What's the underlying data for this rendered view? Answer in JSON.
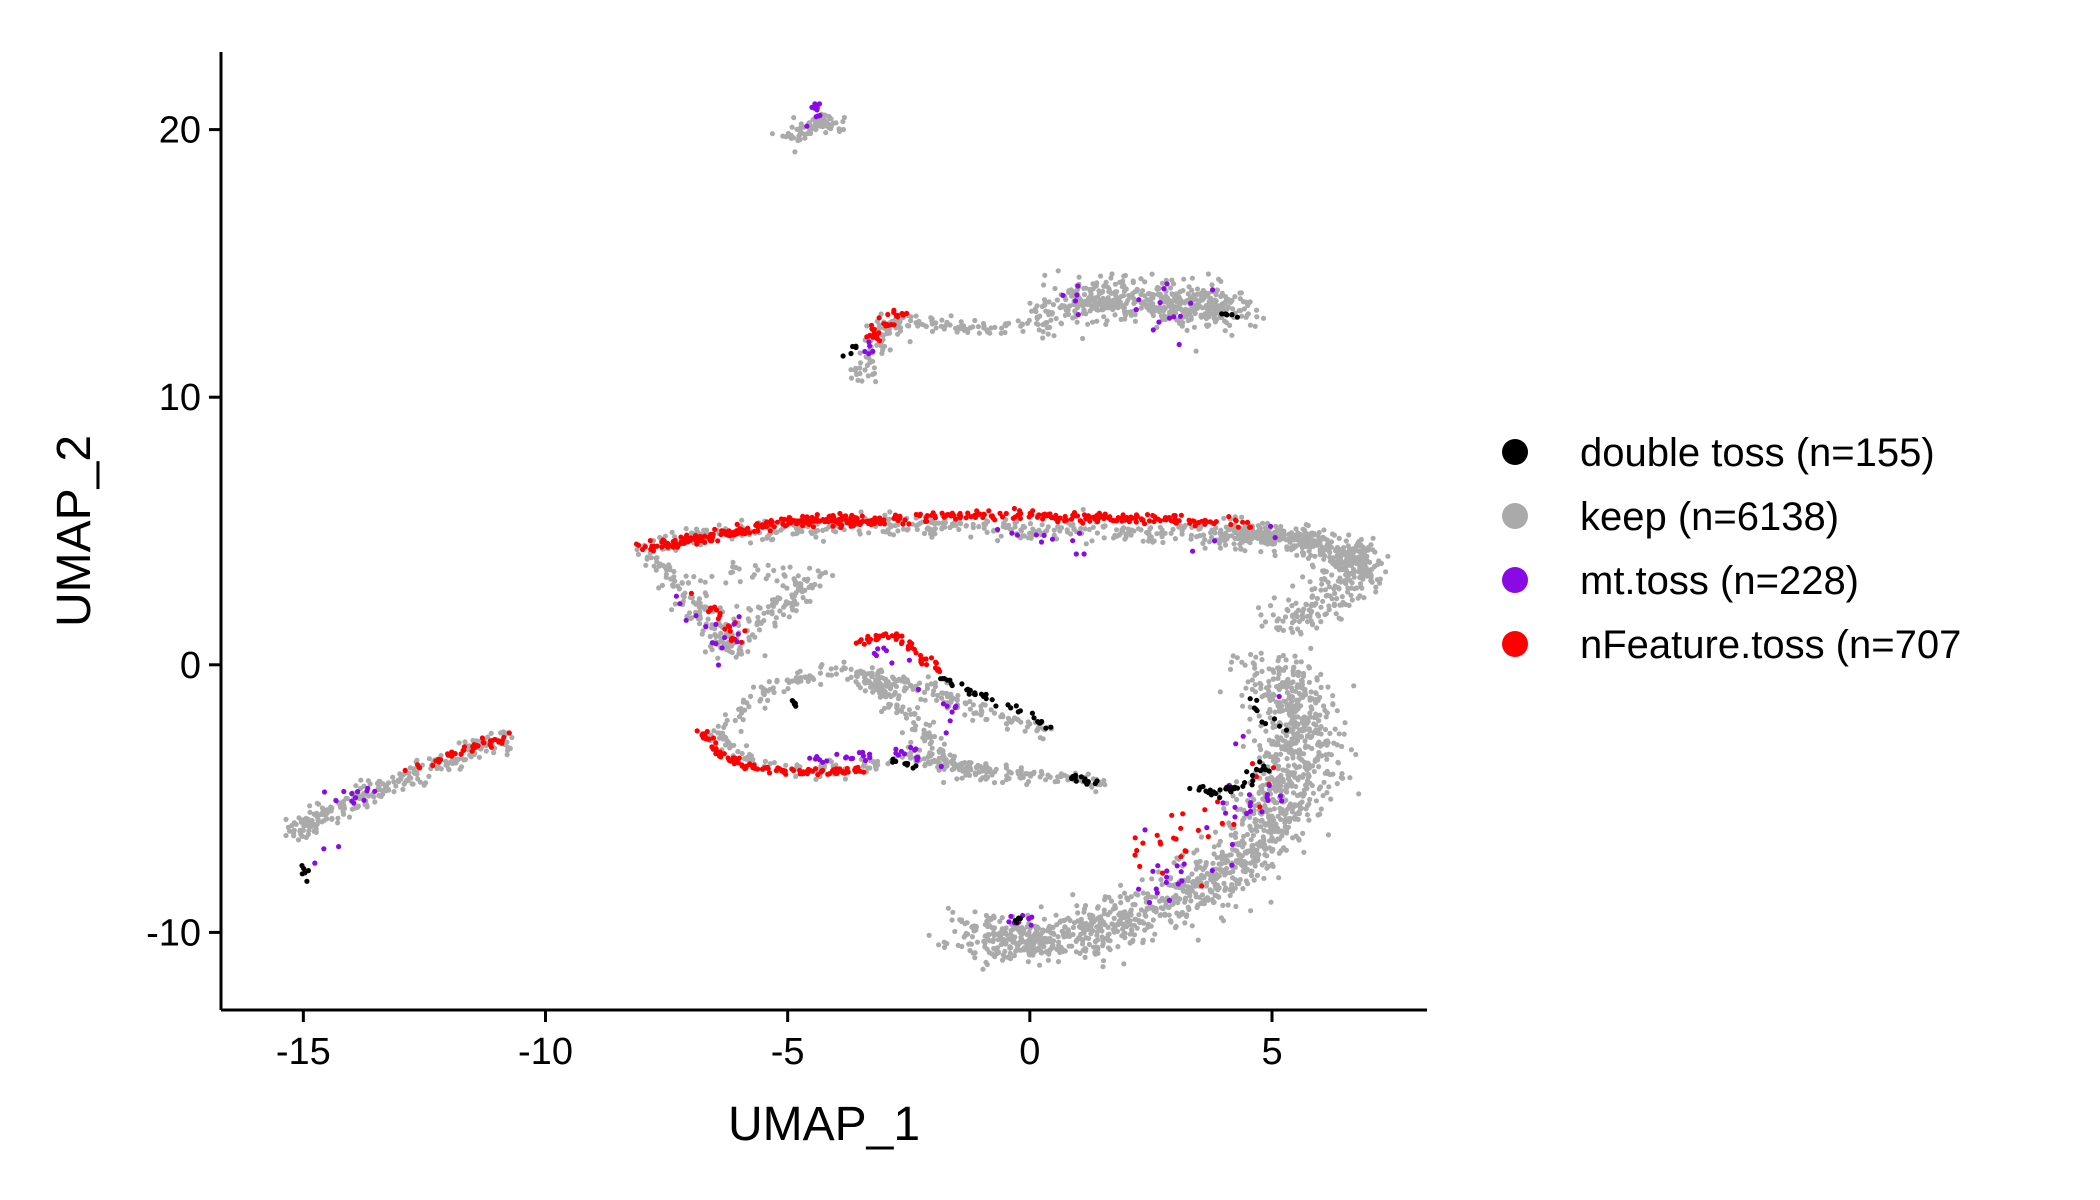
{
  "chart_data": {
    "type": "scatter",
    "title": "",
    "xlabel": "UMAP_1",
    "ylabel": "UMAP_2",
    "xlim": [
      -16.7,
      8.2
    ],
    "ylim": [
      -12.9,
      22.9
    ],
    "xticks": [
      -15,
      -10,
      -5,
      0,
      5
    ],
    "xtick_labels": [
      "-15",
      "-10",
      "-5",
      "0",
      "5"
    ],
    "yticks": [
      -10,
      0,
      10,
      20
    ],
    "ytick_labels": [
      "-10",
      "0",
      "10",
      "20"
    ],
    "grid": false,
    "legend_position": "right",
    "series": [
      {
        "name": "double toss (n=155)",
        "color": "#000000"
      },
      {
        "name": "keep (n=6138)",
        "color": "#aaaaaa"
      },
      {
        "name": "mt.toss (n=228)",
        "color": "#8a0ae6"
      },
      {
        "name": "nFeature.toss (n=707",
        "color": "#ff0000"
      }
    ],
    "clusters": [
      {
        "series": 1,
        "path": [
          [
            -4.9,
            19.7
          ],
          [
            -4.6,
            20.0
          ],
          [
            -4.2,
            20.4
          ],
          [
            -4.0,
            20.1
          ]
        ],
        "spread": 0.35,
        "n": 90
      },
      {
        "series": 1,
        "path": [
          [
            -3.6,
            10.7
          ],
          [
            -3.3,
            11.6
          ],
          [
            -3.0,
            12.6
          ],
          [
            -2.6,
            12.8
          ],
          [
            -2.0,
            12.7
          ],
          [
            -1.0,
            12.6
          ],
          [
            0.5,
            12.6
          ]
        ],
        "spread": 0.35,
        "n": 160
      },
      {
        "series": 1,
        "path": [
          [
            0.5,
            13.4
          ],
          [
            1.5,
            13.7
          ],
          [
            2.5,
            13.6
          ],
          [
            3.5,
            13.4
          ],
          [
            4.2,
            13.1
          ]
        ],
        "spread": 0.9,
        "n": 520
      },
      {
        "series": 1,
        "path": [
          [
            -8.0,
            4.4
          ],
          [
            -5.0,
            5.2
          ],
          [
            -2.0,
            5.2
          ],
          [
            1.0,
            5.0
          ],
          [
            4.0,
            4.9
          ],
          [
            5.5,
            4.8
          ],
          [
            6.6,
            4.2
          ],
          [
            7.0,
            3.4
          ]
        ],
        "spread": 0.45,
        "n": 650
      },
      {
        "series": 1,
        "path": [
          [
            4.0,
            5.0
          ],
          [
            5.5,
            4.6
          ],
          [
            6.8,
            3.8
          ],
          [
            6.2,
            2.5
          ],
          [
            5.2,
            1.5
          ]
        ],
        "spread": 0.7,
        "n": 320
      },
      {
        "series": 1,
        "path": [
          [
            -8.0,
            4.1
          ],
          [
            -7.5,
            3.5
          ],
          [
            -7.0,
            2.5
          ],
          [
            -6.5,
            1.5
          ],
          [
            -6.2,
            0.5
          ],
          [
            -5.8,
            1.6
          ],
          [
            -5.0,
            2.3
          ],
          [
            -4.5,
            3.2
          ],
          [
            -6.2,
            3.5
          ]
        ],
        "spread": 0.5,
        "n": 260
      },
      {
        "series": 1,
        "path": [
          [
            -6.5,
            -2.6
          ],
          [
            -5.5,
            -1.0
          ],
          [
            -4.0,
            -0.2
          ],
          [
            -3.0,
            -0.5
          ],
          [
            -2.0,
            -1.0
          ],
          [
            -1.0,
            -1.8
          ],
          [
            0.5,
            -2.5
          ]
        ],
        "spread": 0.35,
        "n": 220
      },
      {
        "series": 1,
        "path": [
          [
            -6.5,
            -2.6
          ],
          [
            -5.5,
            -3.8
          ],
          [
            -4.0,
            -4.0
          ],
          [
            -2.5,
            -3.5
          ],
          [
            -1.5,
            -3.8
          ],
          [
            -0.5,
            -4.0
          ],
          [
            0.5,
            -4.2
          ],
          [
            1.5,
            -4.4
          ]
        ],
        "spread": 0.3,
        "n": 220
      },
      {
        "series": 1,
        "path": [
          [
            -3.5,
            -0.5
          ],
          [
            -3.0,
            -1.0
          ],
          [
            -2.5,
            -2.0
          ],
          [
            -2.0,
            -3.0
          ],
          [
            -1.5,
            -4.0
          ],
          [
            -0.5,
            -4.3
          ]
        ],
        "spread": 0.35,
        "n": 140
      },
      {
        "series": 1,
        "path": [
          [
            5.0,
            0.0
          ],
          [
            5.5,
            -1.5
          ],
          [
            5.6,
            -3.0
          ],
          [
            5.4,
            -4.5
          ],
          [
            5.0,
            -6.0
          ],
          [
            4.2,
            -7.5
          ],
          [
            3.2,
            -8.6
          ],
          [
            2.0,
            -9.5
          ],
          [
            1.0,
            -10.2
          ],
          [
            -0.5,
            -10.3
          ],
          [
            -0.9,
            -10.0
          ]
        ],
        "spread": 1.0,
        "n": 1500
      },
      {
        "series": 1,
        "path": [
          [
            -15.2,
            -6.3
          ],
          [
            -14.5,
            -5.5
          ],
          [
            -13.8,
            -4.9
          ],
          [
            -13.2,
            -4.5
          ],
          [
            -12.3,
            -3.8
          ],
          [
            -11.5,
            -3.2
          ],
          [
            -10.8,
            -2.8
          ]
        ],
        "spread": 0.4,
        "n": 260
      },
      {
        "series": 3,
        "path": [
          [
            -8.0,
            4.4
          ],
          [
            -6.5,
            4.8
          ],
          [
            -5.0,
            5.4
          ],
          [
            -4.0,
            5.4
          ],
          [
            -3.0,
            5.3
          ]
        ],
        "spread": 0.22,
        "n": 230
      },
      {
        "series": 3,
        "path": [
          [
            -3.0,
            5.4
          ],
          [
            -1.5,
            5.6
          ],
          [
            0.0,
            5.6
          ],
          [
            1.0,
            5.5
          ],
          [
            2.0,
            5.5
          ],
          [
            3.0,
            5.4
          ],
          [
            4.5,
            5.3
          ]
        ],
        "spread": 0.2,
        "n": 190
      },
      {
        "series": 3,
        "path": [
          [
            -6.8,
            -2.5
          ],
          [
            -6.4,
            -3.3
          ],
          [
            -5.8,
            -3.8
          ],
          [
            -5.0,
            -4.0
          ],
          [
            -4.0,
            -4.0
          ],
          [
            -3.5,
            -3.9
          ]
        ],
        "spread": 0.15,
        "n": 110
      },
      {
        "series": 3,
        "path": [
          [
            -3.5,
            0.8
          ],
          [
            -3.0,
            1.2
          ],
          [
            -2.6,
            0.9
          ],
          [
            -2.3,
            0.3
          ],
          [
            -1.8,
            -0.2
          ]
        ],
        "spread": 0.2,
        "n": 50
      },
      {
        "series": 3,
        "path": [
          [
            -12.8,
            -4.0
          ],
          [
            -12.0,
            -3.4
          ],
          [
            -11.3,
            -3.0
          ],
          [
            -10.7,
            -2.7
          ]
        ],
        "spread": 0.15,
        "n": 40
      },
      {
        "series": 3,
        "path": [
          [
            -3.3,
            12.2
          ],
          [
            -3.0,
            12.8
          ],
          [
            -2.6,
            13.2
          ]
        ],
        "spread": 0.2,
        "n": 30
      },
      {
        "series": 3,
        "path": [
          [
            -6.8,
            2.6
          ],
          [
            -6.5,
            2.0
          ],
          [
            -6.2,
            1.5
          ],
          [
            -6.0,
            0.8
          ]
        ],
        "spread": 0.3,
        "n": 20
      },
      {
        "series": 3,
        "path": [
          [
            3.0,
            -6.0
          ],
          [
            2.5,
            -7.0
          ],
          [
            4.5,
            -4.5
          ],
          [
            3.5,
            -8.0
          ]
        ],
        "spread": 1.2,
        "n": 30
      },
      {
        "series": 0,
        "path": [
          [
            -1.8,
            -0.5
          ],
          [
            -1.2,
            -1.0
          ],
          [
            -0.5,
            -1.5
          ],
          [
            0.5,
            -2.4
          ]
        ],
        "spread": 0.15,
        "n": 35
      },
      {
        "series": 0,
        "path": [
          [
            3.4,
            -4.6
          ],
          [
            3.9,
            -4.8
          ],
          [
            4.4,
            -4.5
          ],
          [
            4.8,
            -3.8
          ]
        ],
        "spread": 0.2,
        "n": 40
      },
      {
        "series": 0,
        "path": [
          [
            0.9,
            -4.2
          ],
          [
            1.2,
            -4.4
          ],
          [
            1.5,
            -4.5
          ]
        ],
        "spread": 0.1,
        "n": 15
      },
      {
        "series": 0,
        "path": [
          [
            -3.0,
            -3.5
          ],
          [
            -2.6,
            -3.7
          ],
          [
            -2.3,
            -3.8
          ]
        ],
        "spread": 0.1,
        "n": 10
      },
      {
        "series": 0,
        "path": [
          [
            4.0,
            13.1
          ],
          [
            4.3,
            13.0
          ]
        ],
        "spread": 0.05,
        "n": 6
      },
      {
        "series": 0,
        "path": [
          [
            -15.0,
            -7.5
          ],
          [
            -14.9,
            -8.2
          ]
        ],
        "spread": 0.08,
        "n": 6
      },
      {
        "series": 0,
        "path": [
          [
            -0.2,
            -9.4
          ],
          [
            -0.4,
            -9.7
          ]
        ],
        "spread": 0.08,
        "n": 6
      },
      {
        "series": 0,
        "path": [
          [
            -5.0,
            -1.3
          ],
          [
            -4.8,
            -1.5
          ]
        ],
        "spread": 0.08,
        "n": 5
      },
      {
        "series": 0,
        "path": [
          [
            4.6,
            -1.2
          ],
          [
            4.8,
            -2.0
          ],
          [
            5.3,
            -2.5
          ]
        ],
        "spread": 0.2,
        "n": 10
      },
      {
        "series": 0,
        "path": [
          [
            -3.8,
            11.5
          ],
          [
            -3.5,
            12.0
          ]
        ],
        "spread": 0.1,
        "n": 5
      },
      {
        "series": 2,
        "path": [
          [
            -4.6,
            20.1
          ],
          [
            -4.3,
            20.6
          ],
          [
            -4.5,
            21.0
          ]
        ],
        "spread": 0.15,
        "n": 12
      },
      {
        "series": 2,
        "path": [
          [
            -4.5,
            -3.5
          ],
          [
            -3.5,
            -3.4
          ],
          [
            -2.5,
            -3.2
          ],
          [
            -2.0,
            -3.6
          ]
        ],
        "spread": 0.25,
        "n": 30
      },
      {
        "series": 2,
        "path": [
          [
            0.5,
            13.5
          ],
          [
            2.0,
            14.0
          ],
          [
            3.0,
            12.5
          ],
          [
            2.5,
            14.5
          ],
          [
            3.5,
            13.8
          ]
        ],
        "spread": 0.6,
        "n": 18
      },
      {
        "series": 2,
        "path": [
          [
            -7.5,
            3.0
          ],
          [
            -6.5,
            1.5
          ],
          [
            -6.5,
            0.5
          ],
          [
            -5.8,
            2.0
          ]
        ],
        "spread": 0.5,
        "n": 15
      },
      {
        "series": 2,
        "path": [
          [
            -0.5,
            5.0
          ],
          [
            1.0,
            4.5
          ],
          [
            3.5,
            4.5
          ],
          [
            5.0,
            5.0
          ]
        ],
        "spread": 0.5,
        "n": 15
      },
      {
        "series": 2,
        "path": [
          [
            3.5,
            -7.0
          ],
          [
            2.5,
            -8.5
          ],
          [
            5.0,
            -4.0
          ],
          [
            4.5,
            -6.0
          ],
          [
            2.0,
            -10.0
          ],
          [
            5.0,
            -0.5
          ]
        ],
        "spread": 0.7,
        "n": 40
      },
      {
        "series": 2,
        "path": [
          [
            -14.5,
            -4.5
          ],
          [
            -14.0,
            -5.0
          ],
          [
            -13.5,
            -4.3
          ],
          [
            -15.0,
            -7.8
          ]
        ],
        "spread": 0.3,
        "n": 15
      },
      {
        "series": 2,
        "path": [
          [
            -0.3,
            -9.3
          ],
          [
            0.1,
            -9.5
          ],
          [
            -0.6,
            -9.6
          ]
        ],
        "spread": 0.15,
        "n": 10
      },
      {
        "series": 2,
        "path": [
          [
            -3.2,
            0.5
          ],
          [
            -2.5,
            0.0
          ],
          [
            -1.5,
            -1.5
          ],
          [
            -2.0,
            -2.5
          ]
        ],
        "spread": 0.3,
        "n": 15
      },
      {
        "series": 2,
        "path": [
          [
            -3.5,
            11.5
          ],
          [
            -3.3,
            12.0
          ]
        ],
        "spread": 0.2,
        "n": 5
      }
    ]
  }
}
